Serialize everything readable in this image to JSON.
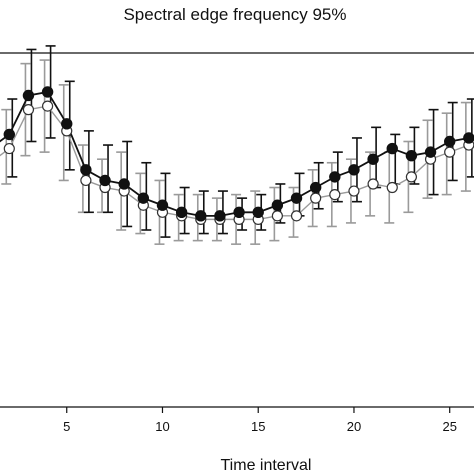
{
  "chart_data": {
    "type": "line",
    "title": "Spectral edge frequency 95%",
    "xlabel": "Time interval",
    "ylabel": "",
    "xlim": [
      0,
      27
    ],
    "ylim": [
      0,
      100
    ],
    "x_ticks": [
      5,
      10,
      15,
      20,
      25
    ],
    "grid": false,
    "legend": "none",
    "x": [
      1,
      2,
      3,
      4,
      5,
      6,
      7,
      8,
      9,
      10,
      11,
      12,
      13,
      14,
      15,
      16,
      17,
      18,
      19,
      20,
      21,
      22,
      23,
      24,
      25,
      26
    ],
    "series": [
      {
        "marker": "filled-circle",
        "color": "#111111",
        "values": [
          73,
          77,
          88,
          89,
          80,
          67,
          64,
          63,
          59,
          57,
          55,
          54,
          54,
          55,
          55,
          57,
          59,
          62,
          65,
          67,
          70,
          73,
          71,
          72,
          75,
          76
        ],
        "error_lower": [
          66,
          65,
          75,
          76,
          67,
          55,
          55,
          51,
          50,
          48,
          49,
          49,
          49,
          50,
          50,
          52,
          54,
          56,
          58,
          58,
          62,
          63,
          63,
          60,
          64,
          65
        ],
        "error_upper": [
          80,
          87,
          101,
          102,
          92,
          78,
          74,
          75,
          69,
          66,
          62,
          61,
          61,
          59,
          60,
          63,
          66,
          69,
          72,
          76,
          79,
          77,
          79,
          84,
          86,
          87
        ]
      },
      {
        "marker": "open-circle",
        "color": "#9a9a9a",
        "values": [
          69,
          73,
          84,
          85,
          78,
          64,
          62,
          61,
          57,
          55,
          54,
          53,
          53,
          53,
          53,
          54,
          54,
          59,
          60,
          61,
          63,
          62,
          65,
          70,
          72,
          74
        ],
        "error_lower": [
          62,
          63,
          71,
          72,
          64,
          55,
          55,
          50,
          49,
          46,
          47,
          47,
          47,
          46,
          46,
          47,
          48,
          51,
          51,
          52,
          54,
          52,
          55,
          59,
          60,
          61
        ],
        "error_upper": [
          77,
          84,
          97,
          98,
          91,
          74,
          70,
          72,
          66,
          64,
          60,
          60,
          59,
          60,
          61,
          62,
          62,
          67,
          69,
          70,
          72,
          72,
          75,
          81,
          83,
          86
        ]
      }
    ]
  }
}
